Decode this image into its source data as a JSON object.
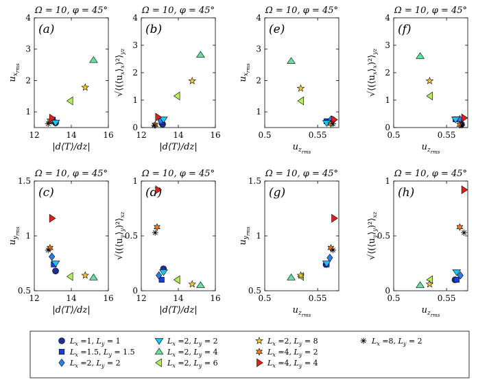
{
  "title": "",
  "series_styles": [
    {
      "name": "L_x =1, L_y = 1",
      "marker": "circle",
      "fill": "#1f2f8f"
    },
    {
      "name": "L_x =1.5, L_y = 1.5",
      "marker": "square",
      "fill": "#1540d8"
    },
    {
      "name": "L_x =2, L_y = 2",
      "marker": "diamond",
      "fill": "#2a7ee8"
    },
    {
      "name": "L_x =2, L_y = 2",
      "marker": "triangle-down",
      "fill": "#19c4f0"
    },
    {
      "name": "L_x =2, L_y = 4",
      "marker": "triangle-up",
      "fill": "#66e0a0"
    },
    {
      "name": "L_x =2, L_y = 6",
      "marker": "triangle-left",
      "fill": "#b6ee55"
    },
    {
      "name": "L_x =2, L_y = 8",
      "marker": "star5",
      "fill": "#f3c83a"
    },
    {
      "name": "L_x =4, L_y = 2",
      "marker": "star6",
      "fill": "#f07c24"
    },
    {
      "name": "L_x =4, L_y = 4",
      "marker": "triangle-right",
      "fill": "#e0201a"
    },
    {
      "name": "L_x =8, L_y = 2",
      "marker": "asterisk",
      "fill": "#000000"
    }
  ],
  "legend": {
    "entries": [
      {
        "lx": "L",
        "lxsub": "x",
        "lxval": " =1, ",
        "ly": "L",
        "lysub": "y",
        "lyval": " = 1"
      },
      {
        "lx": "L",
        "lxsub": "x",
        "lxval": " =1.5, ",
        "ly": "L",
        "lysub": "y",
        "lyval": " = 1.5"
      },
      {
        "lx": "L",
        "lxsub": "x",
        "lxval": " =2, ",
        "ly": "L",
        "lysub": "y",
        "lyval": " = 2"
      },
      {
        "lx": "L",
        "lxsub": "x",
        "lxval": " =2, ",
        "ly": "L",
        "lysub": "y",
        "lyval": " = 2"
      },
      {
        "lx": "L",
        "lxsub": "x",
        "lxval": " =2, ",
        "ly": "L",
        "lysub": "y",
        "lyval": " = 4"
      },
      {
        "lx": "L",
        "lxsub": "x",
        "lxval": " =2, ",
        "ly": "L",
        "lysub": "y",
        "lyval": " = 6"
      },
      {
        "lx": "L",
        "lxsub": "x",
        "lxval": " =2, ",
        "ly": "L",
        "lysub": "y",
        "lyval": " = 8"
      },
      {
        "lx": "L",
        "lxsub": "x",
        "lxval": " =4, ",
        "ly": "L",
        "lysub": "y",
        "lyval": " = 2"
      },
      {
        "lx": "L",
        "lxsub": "x",
        "lxval": " =4, ",
        "ly": "L",
        "lysub": "y",
        "lyval": " = 4"
      },
      {
        "lx": "L",
        "lxsub": "x",
        "lxval": " =8, ",
        "ly": "L",
        "lysub": "y",
        "lyval": " = 2"
      }
    ]
  },
  "chart_data": [
    {
      "type": "scatter",
      "panel": "(a)",
      "title": "Ω = 10, φ = 45°",
      "xlabel": "|d⟨T⟩/dz|",
      "ylabel": "u_x_rms",
      "xlim": [
        12,
        16
      ],
      "ylim": [
        0.5,
        4
      ],
      "xticks": [
        "12",
        "14",
        "16"
      ],
      "yticks": [
        "1",
        "2",
        "3",
        "4"
      ],
      "x": [
        13.15,
        13.0,
        12.95,
        13.15,
        15.2,
        13.95,
        14.75,
        12.85,
        12.95,
        12.75
      ],
      "y": [
        0.65,
        0.75,
        0.73,
        0.66,
        2.65,
        1.35,
        1.78,
        0.72,
        0.8,
        0.62
      ]
    },
    {
      "type": "scatter",
      "panel": "(b)",
      "title": "Ω = 10, φ = 45°",
      "xlabel": "|d⟨T⟩/dz|",
      "ylabel": "√⟨(⟨u_x⟩_x)²⟩_yz",
      "xlim": [
        12,
        16
      ],
      "ylim": [
        0,
        4
      ],
      "xticks": [
        "12",
        "14",
        "16"
      ],
      "yticks": [
        "0",
        "1",
        "2",
        "3",
        "4"
      ],
      "x": [
        13.15,
        13.1,
        13.05,
        13.2,
        15.2,
        13.95,
        14.75,
        12.75,
        12.9,
        12.7
      ],
      "y": [
        0.12,
        0.2,
        0.25,
        0.3,
        2.65,
        1.15,
        1.7,
        0.1,
        0.38,
        0.08
      ]
    },
    {
      "type": "scatter",
      "panel": "(e)",
      "title": "Ω = 10, φ = 45°",
      "xlabel": "u_z_rms",
      "ylabel": "u_x_rms",
      "xlim": [
        0.5,
        0.57
      ],
      "ylim": [
        0.5,
        4
      ],
      "xticks": [
        "0.5",
        "0.55"
      ],
      "yticks": [
        "1",
        "2",
        "3",
        "4"
      ],
      "x": [
        0.564,
        0.5585,
        0.5625,
        0.5585,
        0.525,
        0.5345,
        0.534,
        0.5625,
        0.5655,
        0.5645
      ],
      "y": [
        0.75,
        0.7,
        0.75,
        0.65,
        2.62,
        1.35,
        1.75,
        0.62,
        0.75,
        0.62
      ]
    },
    {
      "type": "scatter",
      "panel": "(f)",
      "title": "Ω = 10, φ = 45°",
      "xlabel": "u_z_rms",
      "ylabel": "√⟨(⟨u_x⟩_x)²⟩_yz",
      "xlim": [
        0.5,
        0.57
      ],
      "ylim": [
        0,
        4
      ],
      "xticks": [
        "0.5",
        "0.55"
      ],
      "yticks": [
        "0",
        "1",
        "2",
        "3",
        "4"
      ],
      "x": [
        0.564,
        0.5585,
        0.5625,
        0.5585,
        0.525,
        0.5345,
        0.534,
        0.5625,
        0.5665,
        0.5645
      ],
      "y": [
        0.12,
        0.3,
        0.3,
        0.3,
        2.6,
        1.15,
        1.7,
        0.1,
        0.35,
        0.08
      ]
    },
    {
      "type": "scatter",
      "panel": "(c)",
      "title": "Ω = 10, φ = 45°",
      "xlabel": "|d⟨T⟩/dz|",
      "ylabel": "u_y_rms",
      "xlim": [
        12,
        16
      ],
      "ylim": [
        0.5,
        1.5
      ],
      "xticks": [
        "12",
        "14",
        "16"
      ],
      "yticks": [
        "0.5",
        "1",
        "1.5"
      ],
      "x": [
        13.15,
        13.05,
        12.95,
        13.15,
        15.2,
        13.95,
        14.75,
        12.85,
        12.95,
        12.75
      ],
      "y": [
        0.68,
        0.74,
        0.81,
        0.75,
        0.62,
        0.63,
        0.64,
        0.89,
        1.16,
        0.87
      ]
    },
    {
      "type": "scatter",
      "panel": "(d)",
      "title": "Ω = 10, φ = 45°",
      "xlabel": "|d⟨T⟩/dz|",
      "ylabel": "√⟨(⟨u_y⟩_y)²⟩_xz",
      "xlim": [
        12,
        16
      ],
      "ylim": [
        0,
        1
      ],
      "xticks": [
        "12",
        "14",
        "16"
      ],
      "yticks": [
        "0",
        "0.5",
        "1"
      ],
      "x": [
        13.2,
        13.1,
        12.95,
        13.2,
        15.2,
        13.95,
        14.75,
        12.85,
        12.9,
        12.75
      ],
      "y": [
        0.2,
        0.1,
        0.14,
        0.17,
        0.05,
        0.1,
        0.06,
        0.58,
        0.92,
        0.53
      ]
    },
    {
      "type": "scatter",
      "panel": "(g)",
      "title": "Ω = 10, φ = 45°",
      "xlabel": "u_z_rms",
      "ylabel": "u_y_rms",
      "xlim": [
        0.5,
        0.57
      ],
      "ylim": [
        0.5,
        1.5
      ],
      "xticks": [
        "0.5",
        "0.55"
      ],
      "yticks": [
        "0.5",
        "1",
        "1.5"
      ],
      "x": [
        0.558,
        0.5585,
        0.5615,
        0.5585,
        0.525,
        0.5345,
        0.534,
        0.5625,
        0.5655,
        0.5645
      ],
      "y": [
        0.74,
        0.74,
        0.8,
        0.75,
        0.62,
        0.63,
        0.64,
        0.89,
        1.16,
        0.87
      ]
    },
    {
      "type": "scatter",
      "panel": "(h)",
      "title": "Ω = 10, φ = 45°",
      "xlabel": "u_z_rms",
      "ylabel": "√⟨(⟨u_y⟩_y)²⟩_xz",
      "xlim": [
        0.5,
        0.57
      ],
      "ylim": [
        0,
        1
      ],
      "xticks": [
        "0.5",
        "0.55"
      ],
      "yticks": [
        "0",
        "0.5",
        "1"
      ],
      "x": [
        0.558,
        0.5595,
        0.563,
        0.5595,
        0.525,
        0.5345,
        0.534,
        0.5625,
        0.5665,
        0.5665
      ],
      "y": [
        0.1,
        0.1,
        0.14,
        0.17,
        0.05,
        0.1,
        0.06,
        0.58,
        0.92,
        0.53
      ]
    }
  ]
}
